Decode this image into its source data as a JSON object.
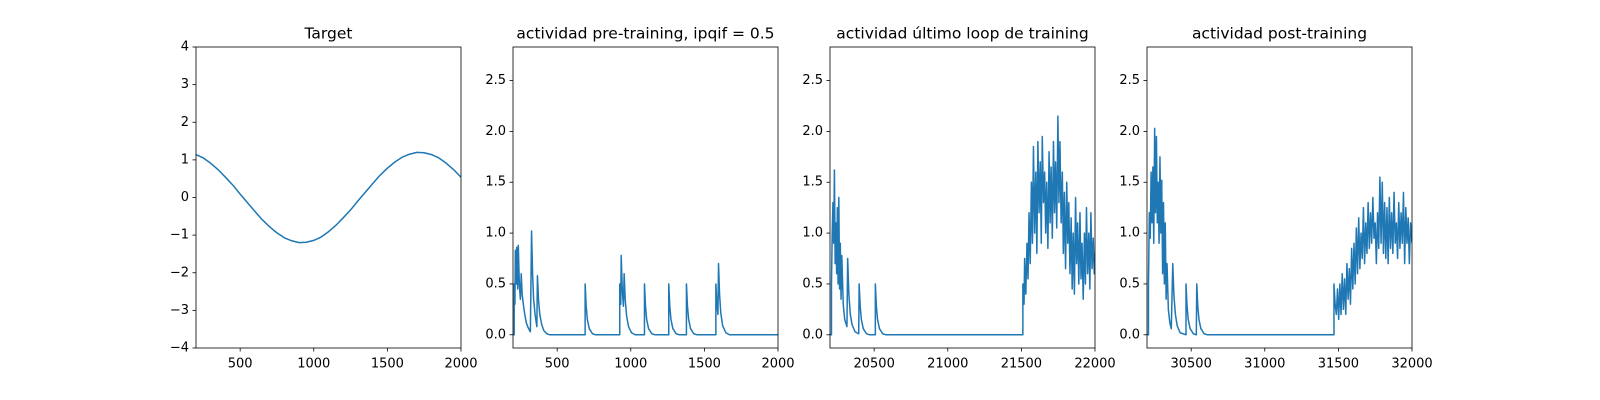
{
  "chart_data": [
    {
      "type": "line",
      "title": "Target",
      "xlim": [
        200,
        2000
      ],
      "xticks": [
        500,
        1000,
        1500,
        2000
      ],
      "ylim": [
        -4,
        4
      ],
      "yticks": [
        {
          "value": -4,
          "label": "−4"
        },
        {
          "value": -3,
          "label": "−3"
        },
        {
          "value": -2,
          "label": "−2"
        },
        {
          "value": -1,
          "label": "−1"
        },
        0,
        1,
        2,
        3,
        4
      ],
      "x": [
        200,
        250,
        300,
        350,
        400,
        450,
        500,
        550,
        600,
        650,
        700,
        750,
        800,
        850,
        900,
        950,
        1000,
        1050,
        1100,
        1150,
        1200,
        1250,
        1300,
        1350,
        1400,
        1450,
        1500,
        1550,
        1600,
        1650,
        1700,
        1750,
        1800,
        1850,
        1900,
        1950,
        2000
      ],
      "series": [
        {
          "color": "#1f77b4",
          "values": [
            1.14,
            1.05,
            0.91,
            0.74,
            0.54,
            0.33,
            0.09,
            -0.14,
            -0.37,
            -0.59,
            -0.78,
            -0.94,
            -1.07,
            -1.15,
            -1.2,
            -1.19,
            -1.14,
            -1.05,
            -0.91,
            -0.74,
            -0.54,
            -0.33,
            -0.09,
            0.14,
            0.37,
            0.59,
            0.78,
            0.94,
            1.07,
            1.15,
            1.2,
            1.19,
            1.14,
            1.05,
            0.91,
            0.74,
            0.54
          ]
        }
      ]
    },
    {
      "type": "line",
      "title": "actividad pre-training, ipqif = 0.5",
      "xlim": [
        200,
        2000
      ],
      "xticks": [
        500,
        1000,
        1500,
        2000
      ],
      "ylim": [
        -0.13,
        2.83
      ],
      "yticks": [
        {
          "value": 0,
          "label": "0.0"
        },
        0.5,
        {
          "value": 1,
          "label": "1.0"
        },
        1.5,
        {
          "value": 2,
          "label": "2.0"
        },
        2.5
      ],
      "x": [
        200,
        208,
        208,
        213,
        216,
        222,
        225,
        232,
        236,
        243,
        250,
        256,
        262,
        270,
        280,
        290,
        300,
        310,
        318,
        322,
        326,
        333,
        340,
        350,
        358,
        362,
        366,
        373,
        382,
        395,
        410,
        430,
        450,
        690,
        690,
        697,
        705,
        718,
        740,
        760,
        925,
        925,
        932,
        935,
        942,
        950,
        955,
        962,
        972,
        985,
        1005,
        1030,
        1093,
        1093,
        1100,
        1108,
        1121,
        1143,
        1165,
        1258,
        1258,
        1265,
        1273,
        1286,
        1308,
        1330,
        1378,
        1378,
        1385,
        1393,
        1406,
        1428,
        1450,
        1578,
        1578,
        1585,
        1592,
        1596,
        1603,
        1611,
        1624,
        1646,
        1670,
        2000
      ],
      "series": [
        {
          "color": "#1f77b4",
          "values": [
            0,
            0,
            0.5,
            0.3,
            0.83,
            0.5,
            0.86,
            0.45,
            0.88,
            0.5,
            0.35,
            0.6,
            0.4,
            0.3,
            0.2,
            0.12,
            0.08,
            0.05,
            0.03,
            0.5,
            1.02,
            0.6,
            0.35,
            0.2,
            0.12,
            0.08,
            0.58,
            0.35,
            0.2,
            0.1,
            0.04,
            0.01,
            0,
            0,
            0.5,
            0.28,
            0.15,
            0.06,
            0.01,
            0,
            0,
            0.5,
            0.3,
            0.78,
            0.45,
            0.28,
            0.6,
            0.35,
            0.18,
            0.08,
            0.02,
            0,
            0,
            0.5,
            0.28,
            0.15,
            0.06,
            0.01,
            0,
            0,
            0.5,
            0.28,
            0.15,
            0.06,
            0.01,
            0,
            0,
            0.5,
            0.28,
            0.15,
            0.06,
            0.01,
            0,
            0,
            0.5,
            0.3,
            0.2,
            0.7,
            0.4,
            0.22,
            0.09,
            0.02,
            0,
            0
          ]
        }
      ]
    },
    {
      "type": "line",
      "title": "actividad último loop de training",
      "xlim": [
        20200,
        22000
      ],
      "xticks": [
        20500,
        21000,
        21500,
        22000
      ],
      "ylim": [
        -0.13,
        2.83
      ],
      "yticks": [
        {
          "value": 0,
          "label": "0.0"
        },
        0.5,
        {
          "value": 1,
          "label": "1.0"
        },
        1.5,
        {
          "value": 2,
          "label": "2.0"
        },
        2.5
      ],
      "x": [
        20200,
        20210,
        20210,
        20215,
        20220,
        20225,
        20230,
        20235,
        20240,
        20245,
        20250,
        20255,
        20260,
        20265,
        20270,
        20275,
        20280,
        20290,
        20300,
        20315,
        20320,
        20328,
        20338,
        20350,
        20370,
        20395,
        20398,
        20405,
        20413,
        20426,
        20448,
        20470,
        20508,
        20508,
        20515,
        20523,
        20536,
        20558,
        20580,
        21510,
        21510,
        21518,
        21522,
        21530,
        21538,
        21545,
        21552,
        21560,
        21568,
        21575,
        21582,
        21590,
        21598,
        21605,
        21612,
        21620,
        21628,
        21635,
        21642,
        21650,
        21658,
        21665,
        21672,
        21680,
        21688,
        21695,
        21702,
        21710,
        21718,
        21725,
        21732,
        21740,
        21748,
        21755,
        21762,
        21770,
        21778,
        21785,
        21792,
        21800,
        21808,
        21815,
        21822,
        21830,
        21838,
        21845,
        21852,
        21860,
        21868,
        21875,
        21882,
        21890,
        21898,
        21905,
        21912,
        21920,
        21928,
        21935,
        21942,
        21950,
        21958,
        21965,
        21972,
        21980,
        21988,
        21995,
        22000
      ],
      "series": [
        {
          "color": "#1f77b4",
          "values": [
            0,
            0,
            0.5,
            1.0,
            1.3,
            0.9,
            1.62,
            0.7,
            1.1,
            0.6,
            1.25,
            0.5,
            1.35,
            0.45,
            0.9,
            0.35,
            0.78,
            0.3,
            0.15,
            0.08,
            0.75,
            0.4,
            0.2,
            0.1,
            0.03,
            0.01,
            0.5,
            0.28,
            0.15,
            0.06,
            0.01,
            0,
            0,
            0.5,
            0.28,
            0.15,
            0.06,
            0.01,
            0,
            0,
            0.5,
            0.3,
            0.75,
            0.4,
            0.9,
            0.55,
            1.2,
            0.7,
            1.5,
            0.9,
            1.85,
            1.0,
            1.6,
            0.8,
            1.9,
            1.2,
            1.7,
            0.9,
            1.95,
            1.3,
            1.6,
            1.0,
            1.5,
            0.85,
            1.8,
            1.1,
            1.65,
            0.95,
            1.9,
            1.2,
            1.7,
            1.05,
            2.15,
            1.3,
            1.9,
            1.1,
            1.6,
            0.8,
            1.4,
            0.65,
            1.5,
            0.9,
            1.3,
            0.6,
            1.15,
            0.45,
            1.0,
            0.4,
            1.35,
            0.7,
            1.1,
            0.5,
            1.2,
            0.55,
            0.9,
            0.35,
            1.0,
            0.5,
            1.25,
            0.6,
            1.0,
            0.45,
            1.2,
            0.65,
            0.95,
            0.6,
            0.8
          ]
        }
      ]
    },
    {
      "type": "line",
      "title": "actividad post-training",
      "xlim": [
        30200,
        32000
      ],
      "xticks": [
        30500,
        31000,
        31500,
        32000
      ],
      "ylim": [
        -0.13,
        2.83
      ],
      "yticks": [
        {
          "value": 0,
          "label": "0.0"
        },
        0.5,
        {
          "value": 1,
          "label": "1.0"
        },
        1.5,
        {
          "value": 2,
          "label": "2.0"
        },
        2.5
      ],
      "x": [
        30200,
        30210,
        30210,
        30216,
        30222,
        30228,
        30234,
        30240,
        30246,
        30252,
        30258,
        30264,
        30270,
        30276,
        30282,
        30288,
        30294,
        30300,
        30306,
        30312,
        30318,
        30324,
        30330,
        30336,
        30345,
        30355,
        30365,
        30375,
        30383,
        30393,
        30405,
        30425,
        30465,
        30465,
        30472,
        30480,
        30493,
        30515,
        30535,
        30538,
        30545,
        30553,
        30566,
        30588,
        30610,
        31470,
        31470,
        31478,
        31486,
        31494,
        31502,
        31510,
        31518,
        31526,
        31534,
        31542,
        31550,
        31558,
        31566,
        31574,
        31582,
        31590,
        31598,
        31606,
        31614,
        31622,
        31630,
        31638,
        31646,
        31654,
        31662,
        31670,
        31678,
        31686,
        31694,
        31702,
        31710,
        31718,
        31726,
        31734,
        31742,
        31750,
        31758,
        31766,
        31774,
        31782,
        31790,
        31798,
        31806,
        31814,
        31822,
        31830,
        31838,
        31846,
        31854,
        31862,
        31870,
        31878,
        31886,
        31894,
        31902,
        31910,
        31918,
        31926,
        31934,
        31942,
        31950,
        31958,
        31966,
        31974,
        31982,
        31990,
        32000
      ],
      "series": [
        {
          "color": "#1f77b4",
          "values": [
            0,
            0,
            0.5,
            1.2,
            0.95,
            1.6,
            1.1,
            1.65,
            0.9,
            2.03,
            1.2,
            1.95,
            1.1,
            1.5,
            0.9,
            1.75,
            1.0,
            1.52,
            0.6,
            1.3,
            0.5,
            1.1,
            0.35,
            0.7,
            0.25,
            0.12,
            0.06,
            0.7,
            0.38,
            0.2,
            0.09,
            0.02,
            0,
            0.5,
            0.28,
            0.15,
            0.06,
            0.01,
            0,
            0.5,
            0.28,
            0.15,
            0.06,
            0.01,
            0,
            0,
            0.5,
            0.3,
            0.2,
            0.45,
            0.15,
            0.5,
            0.2,
            0.6,
            0.25,
            0.55,
            0.2,
            0.7,
            0.35,
            0.65,
            0.3,
            0.85,
            0.45,
            0.9,
            0.5,
            1.05,
            0.6,
            1.15,
            0.65,
            1.0,
            0.75,
            1.25,
            0.7,
            1.1,
            0.8,
            1.3,
            0.85,
            1.2,
            0.9,
            1.35,
            0.95,
            1.1,
            0.7,
            1.2,
            0.85,
            1.55,
            0.9,
            1.5,
            0.8,
            1.3,
            0.75,
            1.25,
            0.7,
            1.35,
            0.85,
            1.2,
            0.8,
            1.4,
            0.9,
            1.1,
            0.75,
            1.3,
            0.85,
            1.2,
            0.9,
            1.4,
            0.7,
            1.25,
            0.9,
            1.15,
            0.7,
            1.1,
            0.9
          ]
        }
      ]
    }
  ]
}
